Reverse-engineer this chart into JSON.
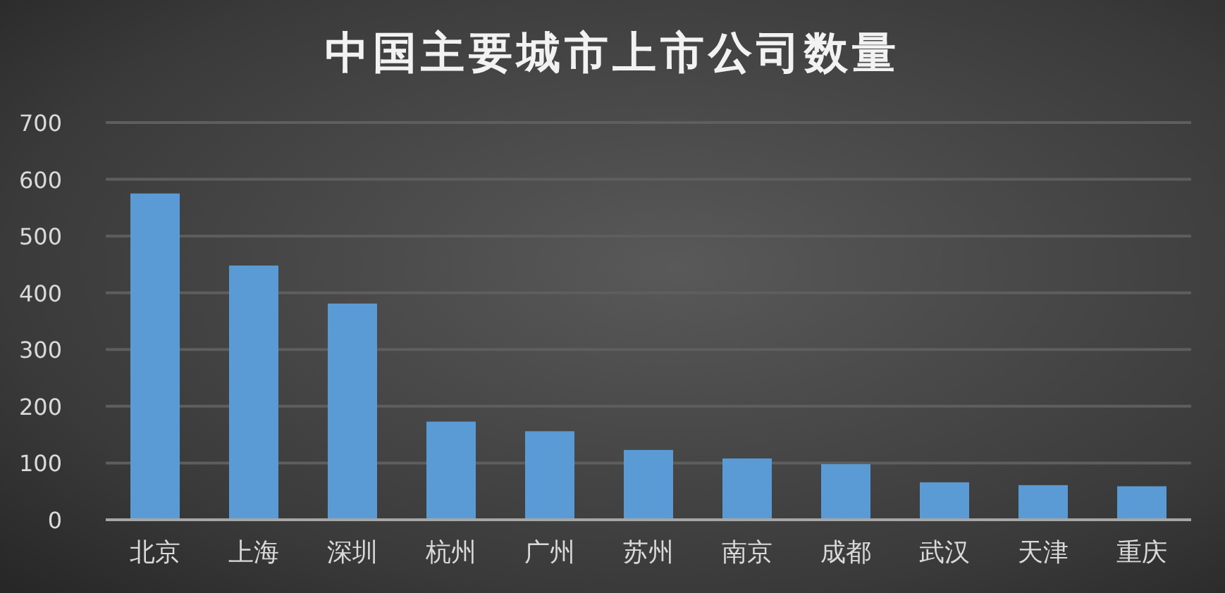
{
  "chart_data": {
    "type": "bar",
    "title": "中国主要城市上市公司数量",
    "categories": [
      "北京",
      "上海",
      "深圳",
      "杭州",
      "广州",
      "苏州",
      "南京",
      "成都",
      "武汉",
      "天津",
      "重庆"
    ],
    "values": [
      575,
      448,
      381,
      173,
      156,
      123,
      108,
      98,
      66,
      61,
      59
    ],
    "color": "#5b9bd5",
    "ylim": [
      0,
      700
    ],
    "yticks": [
      0,
      100,
      200,
      300,
      400,
      500,
      600,
      700
    ],
    "grid": "y"
  }
}
